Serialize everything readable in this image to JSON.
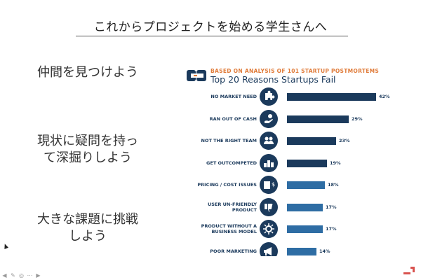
{
  "slide": {
    "title": "これからプロジェクトを始める学生さんへ",
    "points": [
      {
        "lines": [
          "仲間を見つけよう"
        ]
      },
      {
        "lines": [
          "現状に疑問を持っ",
          "て深掘りしよう"
        ]
      },
      {
        "lines": [
          "大きな課題に挑戦",
          "しよう"
        ]
      }
    ]
  },
  "infographic": {
    "subheading": "BASED ON ANALYSIS OF 101 STARTUP POSTMORTEMS",
    "heading": "Top 20 Reasons Startups Fail",
    "colors": {
      "dark_navy": "#1b3a5c",
      "blue": "#2e6da4",
      "orange": "#e07b39"
    },
    "icon_names": [
      "puzzle-icon",
      "cash-hand-icon",
      "team-icon",
      "podium-icon",
      "price-tag-icon",
      "thumbs-down-icon",
      "gear-network-icon",
      "megaphone-icon"
    ]
  },
  "chart_data": {
    "type": "bar",
    "categories": [
      "NO MARKET NEED",
      "RAN OUT OF CASH",
      "NOT THE RIGHT TEAM",
      "GET OUTCOMPETED",
      "PRICING / COST ISSUES",
      "USER UN-FRIENDLY PRODUCT",
      "PRODUCT WITHOUT A BUSINESS MODEL",
      "POOR MARKETING"
    ],
    "category_lines": [
      [
        "NO MARKET NEED"
      ],
      [
        "RAN OUT OF CASH"
      ],
      [
        "NOT THE RIGHT TEAM"
      ],
      [
        "GET OUTCOMPETED"
      ],
      [
        "PRICING / COST ISSUES"
      ],
      [
        "USER UN-FRIENDLY",
        "PRODUCT"
      ],
      [
        "PRODUCT WITHOUT A",
        "BUSINESS MODEL"
      ],
      [
        "POOR MARKETING"
      ]
    ],
    "values": [
      42,
      29,
      23,
      19,
      18,
      17,
      17,
      14
    ],
    "value_labels": [
      "42%",
      "29%",
      "23%",
      "19%",
      "18%",
      "17%",
      "17%",
      "14%"
    ],
    "orientation": "horizontal",
    "title": "Top 20 Reasons Startups Fail",
    "subtitle": "BASED ON ANALYSIS OF 101 STARTUP POSTMORTEMS",
    "xlim": [
      0,
      42
    ]
  },
  "toolbar": {
    "buttons": [
      {
        "name": "prev-slide-icon",
        "glyph": "◀"
      },
      {
        "name": "pen-icon",
        "glyph": "✎"
      },
      {
        "name": "pointer-icon",
        "glyph": "◎"
      },
      {
        "name": "more-icon",
        "glyph": "⋯"
      },
      {
        "name": "next-slide-icon",
        "glyph": "▶"
      }
    ]
  }
}
